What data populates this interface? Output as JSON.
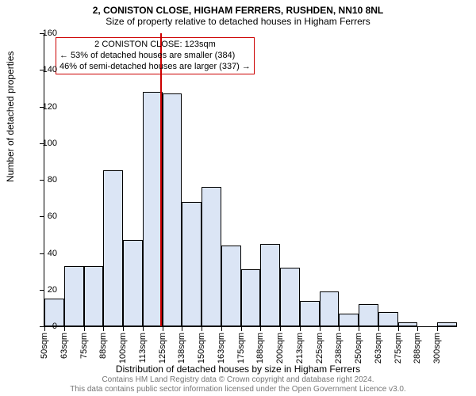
{
  "titles": {
    "main": "2, CONISTON CLOSE, HIGHAM FERRERS, RUSHDEN, NN10 8NL",
    "sub": "Size of property relative to detached houses in Higham Ferrers"
  },
  "axes": {
    "ylabel": "Number of detached properties",
    "xlabel": "Distribution of detached houses by size in Higham Ferrers",
    "ylim_max": 160,
    "ytick_step": 20,
    "yticks": [
      0,
      20,
      40,
      60,
      80,
      100,
      120,
      140,
      160
    ],
    "xticks": [
      "50sqm",
      "63sqm",
      "75sqm",
      "88sqm",
      "100sqm",
      "113sqm",
      "125sqm",
      "138sqm",
      "150sqm",
      "163sqm",
      "175sqm",
      "188sqm",
      "200sqm",
      "213sqm",
      "225sqm",
      "238sqm",
      "250sqm",
      "263sqm",
      "275sqm",
      "288sqm",
      "300sqm"
    ]
  },
  "chart": {
    "type": "histogram",
    "bar_color": "#dbe5f5",
    "bar_border_color": "#000000",
    "background_color": "#ffffff",
    "marker_color": "#cc0000",
    "annotation_border_color": "#cc0000",
    "values": [
      15,
      33,
      33,
      85,
      47,
      128,
      127,
      68,
      76,
      44,
      31,
      45,
      32,
      14,
      19,
      7,
      12,
      8,
      2,
      0,
      2
    ]
  },
  "marker": {
    "position_index": 5.9,
    "line1": "2 CONISTON CLOSE: 123sqm",
    "line2": "← 53% of detached houses are smaller (384)",
    "line3": "46% of semi-detached houses are larger (337) →"
  },
  "footer": {
    "line1": "Contains HM Land Registry data © Crown copyright and database right 2024.",
    "line2": "This data contains public sector information licensed under the Open Government Licence v3.0."
  }
}
